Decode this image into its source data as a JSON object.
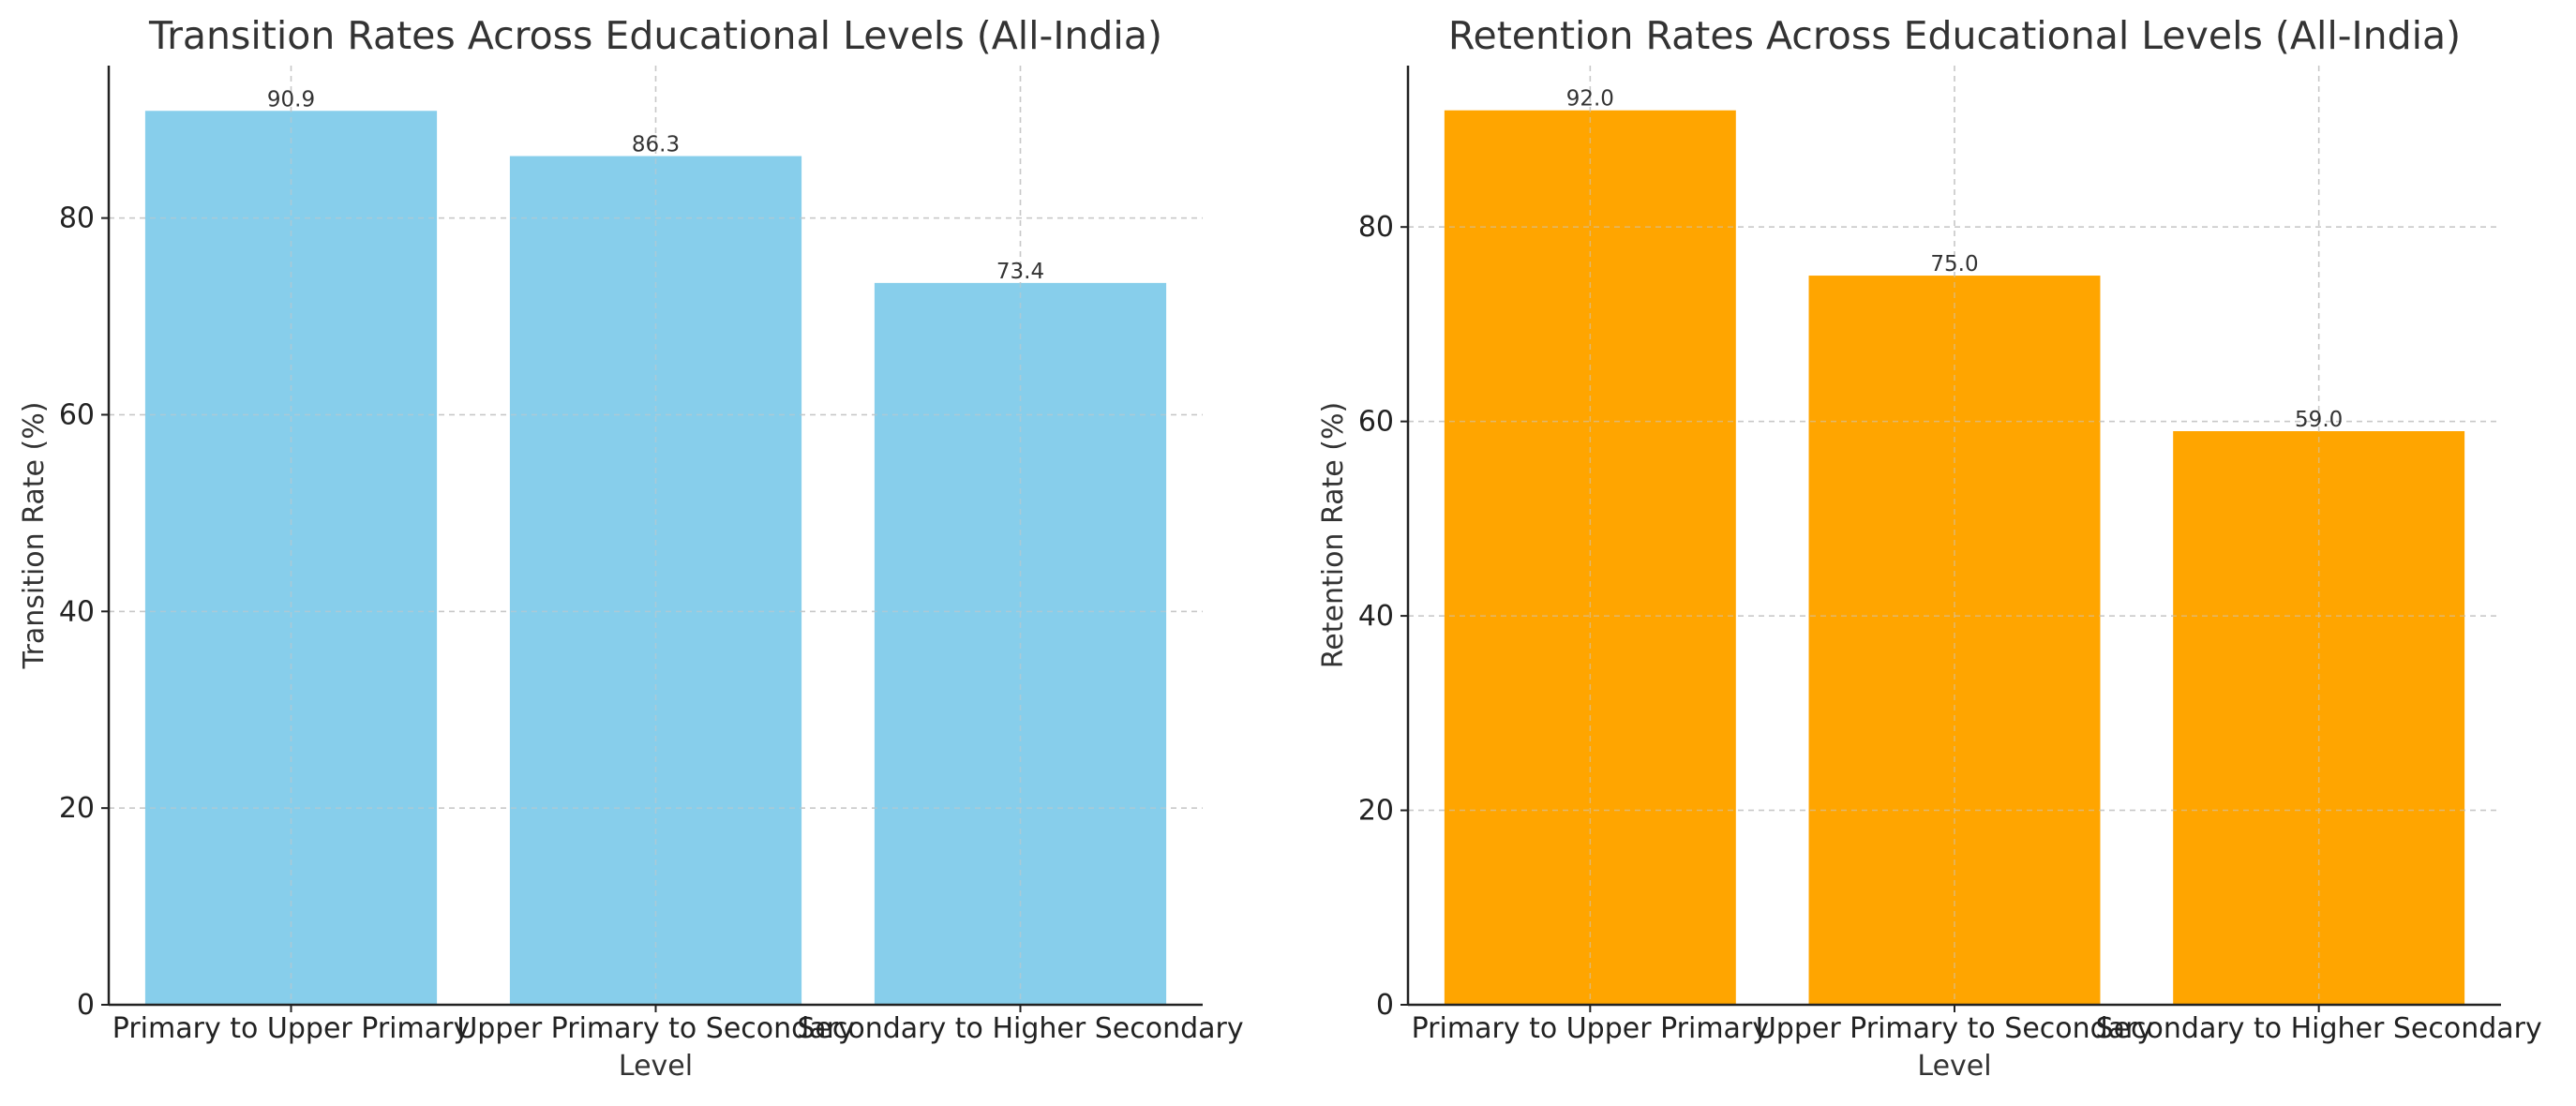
{
  "chart_data": [
    {
      "type": "bar",
      "title": "Transition Rates Across Educational Levels (All-India)",
      "xlabel": "Level",
      "ylabel": "Transition Rate (%)",
      "categories": [
        "Primary to Upper Primary",
        "Upper Primary to Secondary",
        "Secondary to Higher Secondary"
      ],
      "values": [
        90.9,
        86.3,
        73.4
      ],
      "value_labels": [
        "90.9",
        "86.3",
        "73.4"
      ],
      "ylim": [
        0,
        95.5
      ],
      "yticks": [
        0,
        20,
        40,
        60,
        80
      ],
      "color": "#87CEEB",
      "grid": true
    },
    {
      "type": "bar",
      "title": "Retention Rates Across Educational Levels (All-India)",
      "xlabel": "Level",
      "ylabel": "Retention Rate (%)",
      "categories": [
        "Primary to Upper Primary",
        "Upper Primary to Secondary",
        "Secondary to Higher Secondary"
      ],
      "values": [
        92.0,
        75.0,
        59.0
      ],
      "value_labels": [
        "92.0",
        "75.0",
        "59.0"
      ],
      "ylim": [
        0,
        96.6
      ],
      "yticks": [
        0,
        20,
        40,
        60,
        80
      ],
      "color": "#FFA500",
      "grid": true
    }
  ]
}
